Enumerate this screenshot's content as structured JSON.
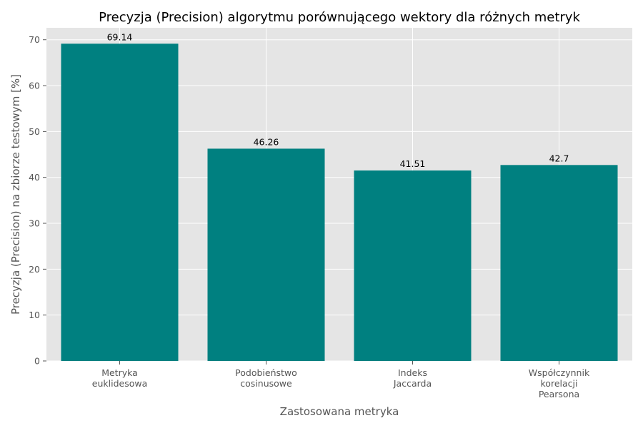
{
  "chart_data": {
    "type": "bar",
    "title": "Precyzja (Precision) algorytmu porównującego wektory dla różnych metryk",
    "xlabel": "Zastosowana metryka",
    "ylabel": "Precyzja (Precision) na zbiorze testowym [%]",
    "categories": [
      [
        "Metryka",
        "euklidesowa"
      ],
      [
        "Podobieństwo",
        "cosinusowe"
      ],
      [
        "Indeks",
        "Jaccarda"
      ],
      [
        "Współczynnik",
        "korelacji",
        "Pearsona"
      ]
    ],
    "values": [
      69.14,
      46.26,
      41.51,
      42.7
    ],
    "data_labels": [
      "69.14",
      "46.26",
      "41.51",
      "42.7"
    ],
    "ylim": [
      0,
      72.6
    ],
    "yticks": [
      0,
      10,
      20,
      30,
      40,
      50,
      60,
      70
    ],
    "grid": true,
    "legend": "none",
    "colors": {
      "bar": "#008080",
      "plot_background": "#e5e5e5",
      "grid": "#ffffff",
      "tick_text": "#555555",
      "axis_text": "#555555",
      "title_text": "#000000"
    }
  }
}
